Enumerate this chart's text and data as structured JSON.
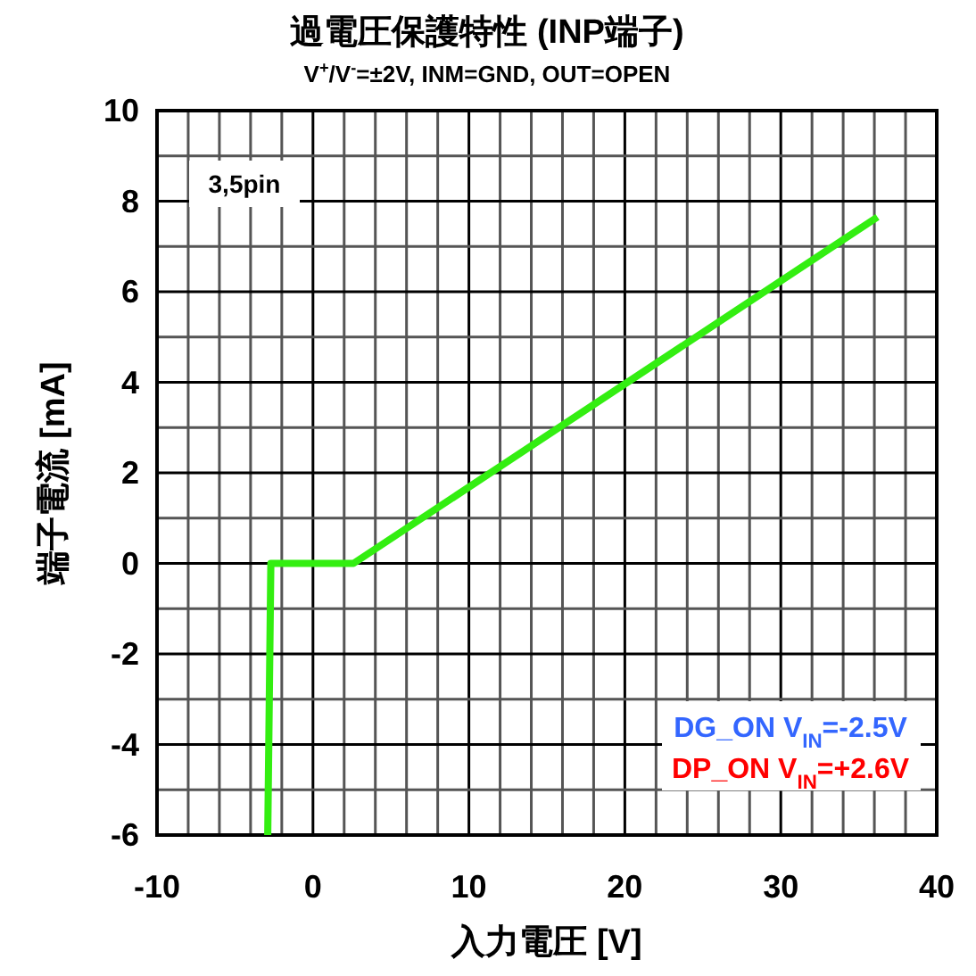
{
  "chart_data": {
    "type": "line",
    "title": "過電圧保護特性 (INP端子)",
    "subtitle": "V$^{+}$/V$^{-}$=±2V, INM=GND, OUT=OPEN",
    "xlabel": "入力電圧 [V]",
    "ylabel": "端子電流 [mA]",
    "annotations": [
      "3,5pin",
      "DG_ON V$_{IN}$=-2.5V",
      "DP_ON V$_{IN}$=+2.6V"
    ],
    "xlim": [
      -10,
      40
    ],
    "ylim": [
      -6,
      10
    ],
    "xticks": [
      -10,
      {
        "value": -8,
        "label": null
      },
      {
        "value": -6,
        "label": null
      },
      {
        "value": -4,
        "label": null
      },
      {
        "value": -2,
        "label": null
      },
      0,
      {
        "value": 2,
        "label": null
      },
      {
        "value": 4,
        "label": null
      },
      {
        "value": 6,
        "label": null
      },
      {
        "value": 8,
        "label": null
      },
      10,
      {
        "value": 12,
        "label": null
      },
      {
        "value": 14,
        "label": null
      },
      {
        "value": 16,
        "label": null
      },
      {
        "value": 18,
        "label": null
      },
      20,
      {
        "value": 22,
        "label": null
      },
      {
        "value": 24,
        "label": null
      },
      {
        "value": 26,
        "label": null
      },
      {
        "value": 28,
        "label": null
      },
      30,
      {
        "value": 32,
        "label": null
      },
      {
        "value": 34,
        "label": null
      },
      {
        "value": 36,
        "label": null
      },
      {
        "value": 38,
        "label": null
      },
      40
    ],
    "yticks": [
      -6,
      {
        "value": -5,
        "label": null
      },
      -4,
      {
        "value": -3,
        "label": null
      },
      -2,
      {
        "value": -1,
        "label": null
      },
      0,
      {
        "value": 1,
        "label": null
      },
      2,
      {
        "value": 3,
        "label": null
      },
      4,
      {
        "value": 5,
        "label": null
      },
      6,
      {
        "value": 7,
        "label": null
      },
      8,
      {
        "value": 9,
        "label": null
      },
      10
    ],
    "grid": true,
    "marker": "none",
    "line_style": "solid",
    "series": [
      {
        "color": "#33ee11",
        "x": [
          -2.9,
          -2.7,
          2.6,
          36.2
        ],
        "values": [
          -6,
          0,
          0,
          7.65
        ]
      }
    ]
  }
}
